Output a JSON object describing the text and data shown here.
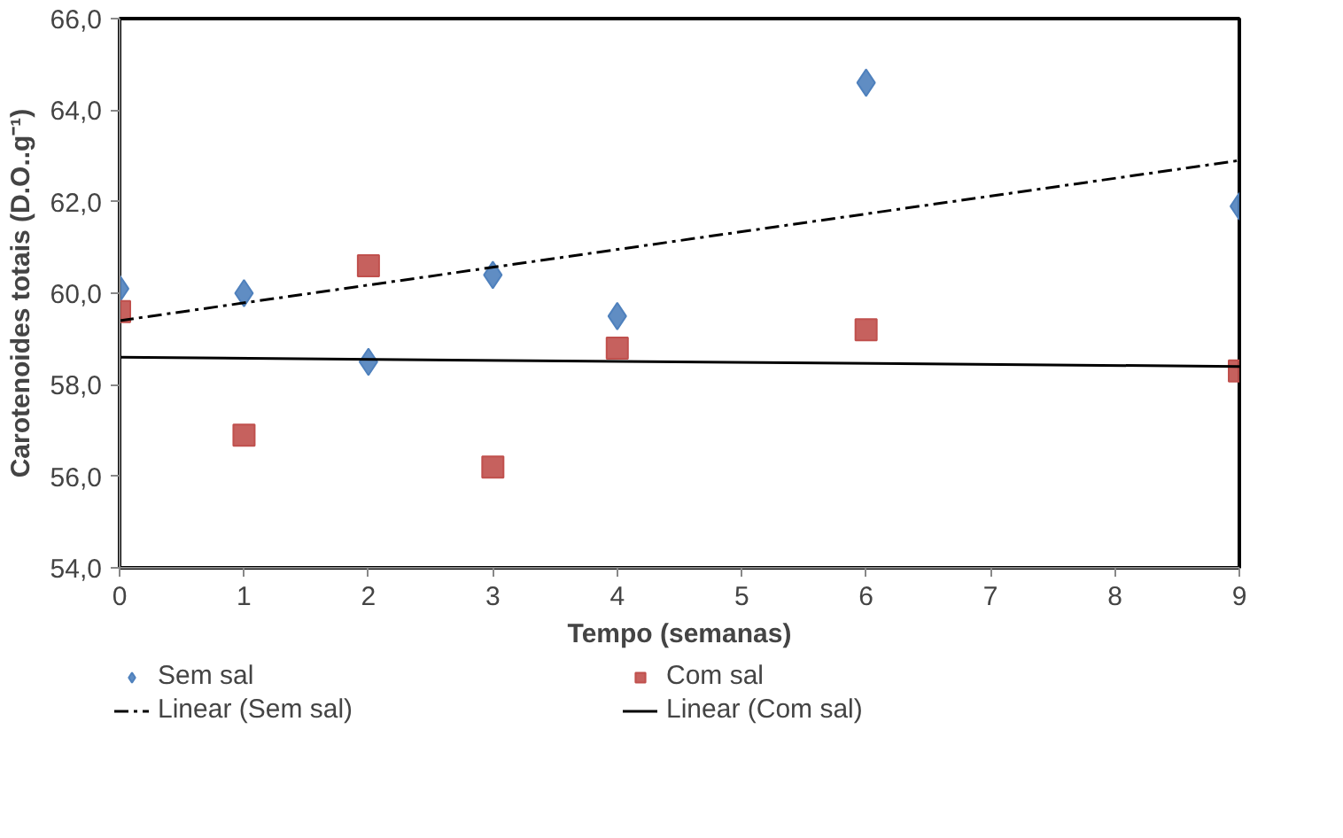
{
  "chart_data": {
    "type": "scatter",
    "xlabel": "Tempo (semanas)",
    "ylabel": "Carotenoides totais (D.O..g⁻¹)",
    "xlim": [
      0,
      9
    ],
    "xticks": [
      0,
      1,
      2,
      3,
      4,
      5,
      6,
      7,
      8,
      9
    ],
    "ylim": [
      54,
      66
    ],
    "yticks": [
      {
        "value": 54,
        "label": "54,0"
      },
      {
        "value": 56,
        "label": "56,0"
      },
      {
        "value": 58,
        "label": "58,0"
      },
      {
        "value": 60,
        "label": "60,0"
      },
      {
        "value": 62,
        "label": "62,0"
      },
      {
        "value": 64,
        "label": "64,0"
      },
      {
        "value": 66,
        "label": "66,0"
      }
    ],
    "grid": false,
    "legend": "bottom",
    "series": [
      {
        "name": "Sem sal",
        "type": "scatter",
        "marker": "diamond",
        "color": "#4f81bd",
        "x": [
          0,
          1,
          2,
          3,
          4,
          6,
          9
        ],
        "values": [
          60.1,
          60.0,
          58.5,
          60.4,
          59.5,
          64.6,
          61.9
        ]
      },
      {
        "name": "Com sal",
        "type": "scatter",
        "marker": "square",
        "color": "#c0504d",
        "x": [
          0,
          1,
          2,
          3,
          4,
          6,
          9
        ],
        "values": [
          59.6,
          56.9,
          60.6,
          56.2,
          58.8,
          59.2,
          58.3
        ]
      },
      {
        "name": "Linear (Sem sal)",
        "type": "line",
        "line_style": "dashed",
        "color": "#000000",
        "x": [
          0,
          9
        ],
        "values": [
          59.4,
          62.9
        ]
      },
      {
        "name": "Linear (Com sal)",
        "type": "line",
        "line_style": "solid",
        "color": "#000000",
        "x": [
          0,
          9
        ],
        "values": [
          58.6,
          58.4
        ]
      }
    ]
  }
}
